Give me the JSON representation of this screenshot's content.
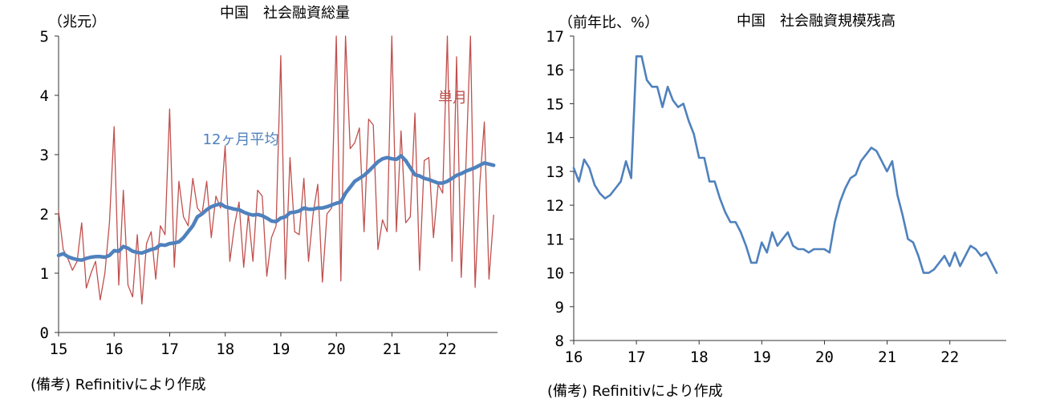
{
  "chart_data": [
    {
      "type": "line",
      "title": "中国　社会融資総量",
      "unit_label": "（兆元）",
      "note": "(備考) Refinitivにより作成",
      "ylim": [
        0,
        5
      ],
      "yticks": [
        "0",
        "1",
        "2",
        "3",
        "4",
        "5"
      ],
      "xlim": [
        15,
        22.9
      ],
      "xticks": [
        {
          "x": 15,
          "label": "15"
        },
        {
          "x": 16,
          "label": "16"
        },
        {
          "x": 17,
          "label": "17"
        },
        {
          "x": 18,
          "label": "18"
        },
        {
          "x": 19,
          "label": "19"
        },
        {
          "x": 20,
          "label": "20"
        },
        {
          "x": 21,
          "label": "21"
        },
        {
          "x": 22,
          "label": "22"
        }
      ],
      "grid": false,
      "series": [
        {
          "name": "単月",
          "color": "#c0504d",
          "x_start": 15.0,
          "x_step": 0.0833,
          "values": [
            2.05,
            1.4,
            1.25,
            1.05,
            1.2,
            1.85,
            0.75,
            1.0,
            1.2,
            0.55,
            1.0,
            1.85,
            3.47,
            0.8,
            2.4,
            0.8,
            0.6,
            1.65,
            0.48,
            1.5,
            1.7,
            0.9,
            1.8,
            1.65,
            3.77,
            1.1,
            2.55,
            1.95,
            1.8,
            2.6,
            2.1,
            2.0,
            2.55,
            1.6,
            2.3,
            2.1,
            3.15,
            1.2,
            1.8,
            2.2,
            1.1,
            2.0,
            1.2,
            2.4,
            2.3,
            0.95,
            1.6,
            1.8,
            4.67,
            0.9,
            2.95,
            1.7,
            1.65,
            2.6,
            1.2,
            2.0,
            2.5,
            0.85,
            2.0,
            2.1,
            5.0,
            0.87,
            5.0,
            3.1,
            3.2,
            3.45,
            1.7,
            3.6,
            3.5,
            1.4,
            1.9,
            1.7,
            5.0,
            1.7,
            3.4,
            1.85,
            1.95,
            3.7,
            1.05,
            2.9,
            2.95,
            1.6,
            2.5,
            2.35,
            5.0,
            1.2,
            4.65,
            0.93,
            2.8,
            5.0,
            0.76,
            2.5,
            3.55,
            0.9,
            1.98
          ]
        },
        {
          "name": "12ヶ月平均",
          "color": "#4f81bd",
          "x_start": 15.0,
          "x_step": 0.0833,
          "values": [
            1.3,
            1.33,
            1.28,
            1.25,
            1.23,
            1.22,
            1.25,
            1.27,
            1.28,
            1.28,
            1.27,
            1.3,
            1.38,
            1.37,
            1.45,
            1.42,
            1.37,
            1.35,
            1.34,
            1.37,
            1.4,
            1.42,
            1.48,
            1.47,
            1.5,
            1.51,
            1.53,
            1.6,
            1.7,
            1.8,
            1.95,
            2.0,
            2.07,
            2.12,
            2.15,
            2.17,
            2.12,
            2.1,
            2.08,
            2.07,
            2.03,
            2.0,
            1.98,
            1.99,
            1.97,
            1.93,
            1.88,
            1.87,
            1.93,
            1.95,
            2.02,
            2.03,
            2.05,
            2.1,
            2.08,
            2.08,
            2.1,
            2.1,
            2.12,
            2.15,
            2.18,
            2.2,
            2.35,
            2.45,
            2.55,
            2.6,
            2.65,
            2.72,
            2.8,
            2.88,
            2.93,
            2.95,
            2.93,
            2.92,
            2.98,
            2.9,
            2.78,
            2.66,
            2.64,
            2.6,
            2.58,
            2.55,
            2.52,
            2.52,
            2.55,
            2.6,
            2.65,
            2.68,
            2.72,
            2.75,
            2.78,
            2.82,
            2.86,
            2.84,
            2.82
          ]
        }
      ],
      "annotations": [
        {
          "text": "単月",
          "color": "#c0504d"
        },
        {
          "text": "12ヶ月平均",
          "color": "#4f81bd"
        }
      ]
    },
    {
      "type": "line",
      "title": "中国　社会融資規模残高",
      "unit_label": "（前年比、%）",
      "note": "(備考) Refinitivにより作成",
      "ylim": [
        8,
        17
      ],
      "yticks": [
        "8",
        "9",
        "10",
        "11",
        "12",
        "13",
        "14",
        "15",
        "16",
        "17"
      ],
      "xlim": [
        16,
        22.9
      ],
      "xticks": [
        {
          "x": 16,
          "label": "16"
        },
        {
          "x": 17,
          "label": "17"
        },
        {
          "x": 18,
          "label": "18"
        },
        {
          "x": 19,
          "label": "19"
        },
        {
          "x": 20,
          "label": "20"
        },
        {
          "x": 21,
          "label": "21"
        },
        {
          "x": 22,
          "label": "22"
        }
      ],
      "grid": false,
      "series": [
        {
          "color": "#4f81bd",
          "x_start": 16.0,
          "x_step": 0.0833,
          "values": [
            13.1,
            12.7,
            13.35,
            13.1,
            12.6,
            12.35,
            12.2,
            12.3,
            12.5,
            12.7,
            13.3,
            12.8,
            16.4,
            16.4,
            15.7,
            15.5,
            15.5,
            14.9,
            15.5,
            15.1,
            14.9,
            15.0,
            14.5,
            14.1,
            13.4,
            13.4,
            12.7,
            12.7,
            12.2,
            11.8,
            11.5,
            11.5,
            11.2,
            10.8,
            10.3,
            10.3,
            10.9,
            10.6,
            11.2,
            10.8,
            11.0,
            11.2,
            10.8,
            10.7,
            10.7,
            10.6,
            10.7,
            10.7,
            10.7,
            10.6,
            11.5,
            12.1,
            12.5,
            12.8,
            12.9,
            13.3,
            13.5,
            13.7,
            13.6,
            13.3,
            13.0,
            13.3,
            12.3,
            11.7,
            11.0,
            10.9,
            10.5,
            10.0,
            10.0,
            10.1,
            10.3,
            10.5,
            10.2,
            10.6,
            10.2,
            10.5,
            10.8,
            10.7,
            10.5,
            10.6,
            10.3,
            10.0
          ]
        }
      ]
    }
  ]
}
